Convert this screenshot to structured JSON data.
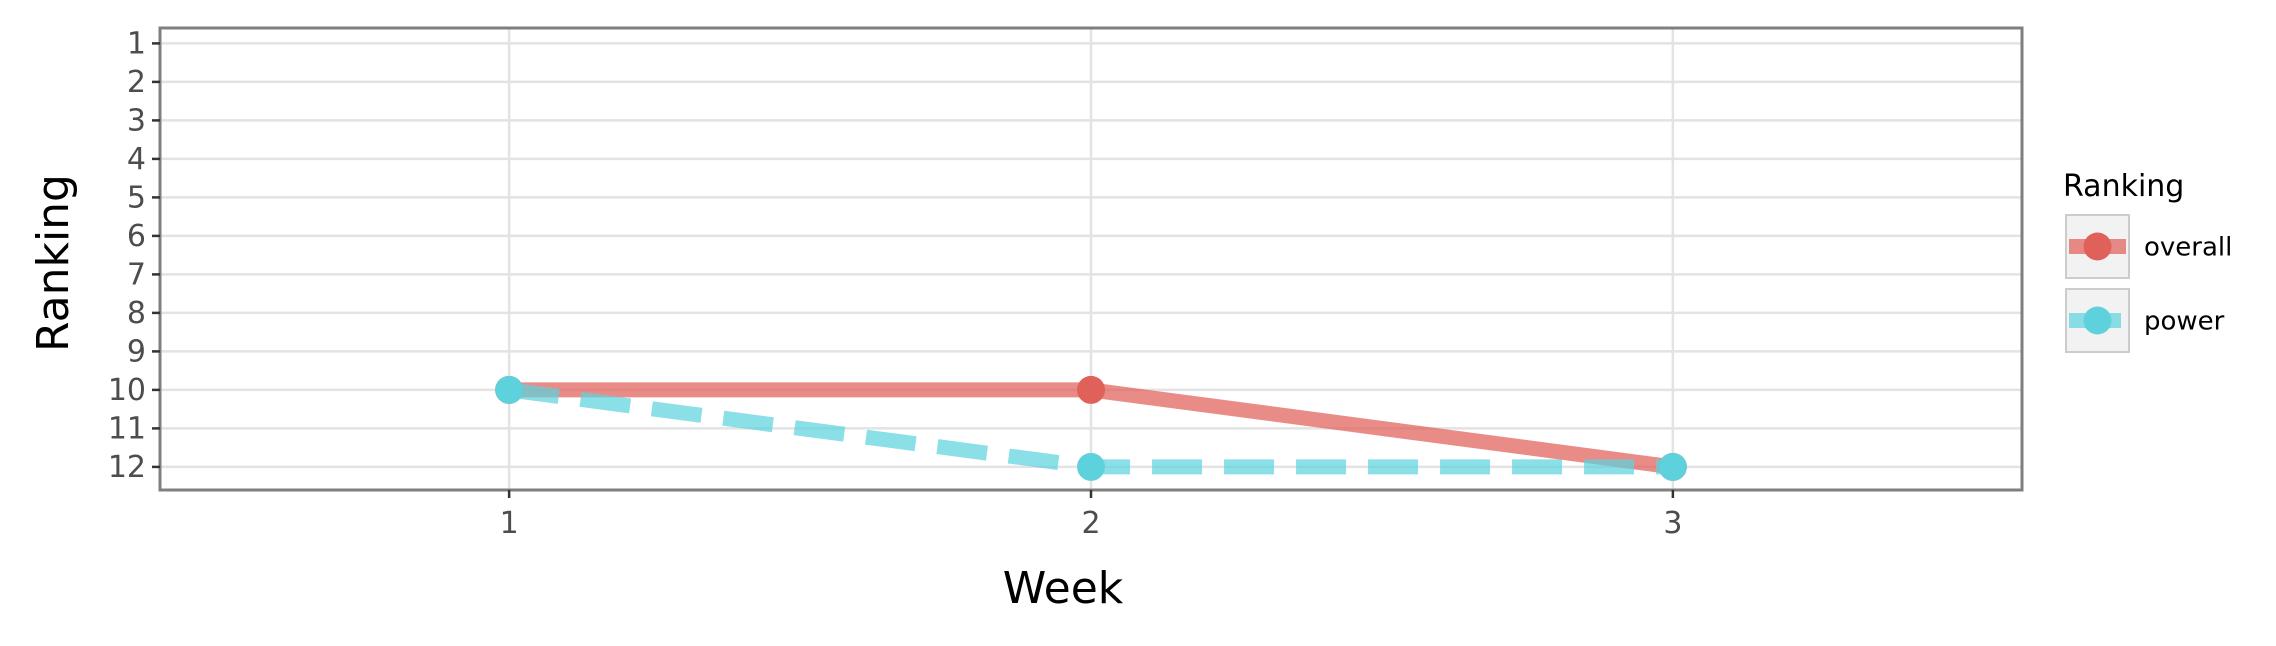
{
  "chart_data": {
    "type": "line",
    "xlabel": "Week",
    "ylabel": "Ranking",
    "x": [
      1,
      2,
      3
    ],
    "xlim": [
      0.4,
      3.6
    ],
    "ylim": [
      12.6,
      0.6
    ],
    "y_reversed": true,
    "yticks": [
      1,
      2,
      3,
      4,
      5,
      6,
      7,
      8,
      9,
      10,
      11,
      12
    ],
    "grid": true,
    "legend": {
      "title": "Ranking",
      "position": "right"
    },
    "series": [
      {
        "name": "overall",
        "values": [
          10,
          10,
          12
        ],
        "color": "#e0605a",
        "linestyle": "solid"
      },
      {
        "name": "power",
        "values": [
          10,
          12,
          12
        ],
        "color": "#5ed2dc",
        "linestyle": "dashed"
      }
    ]
  }
}
